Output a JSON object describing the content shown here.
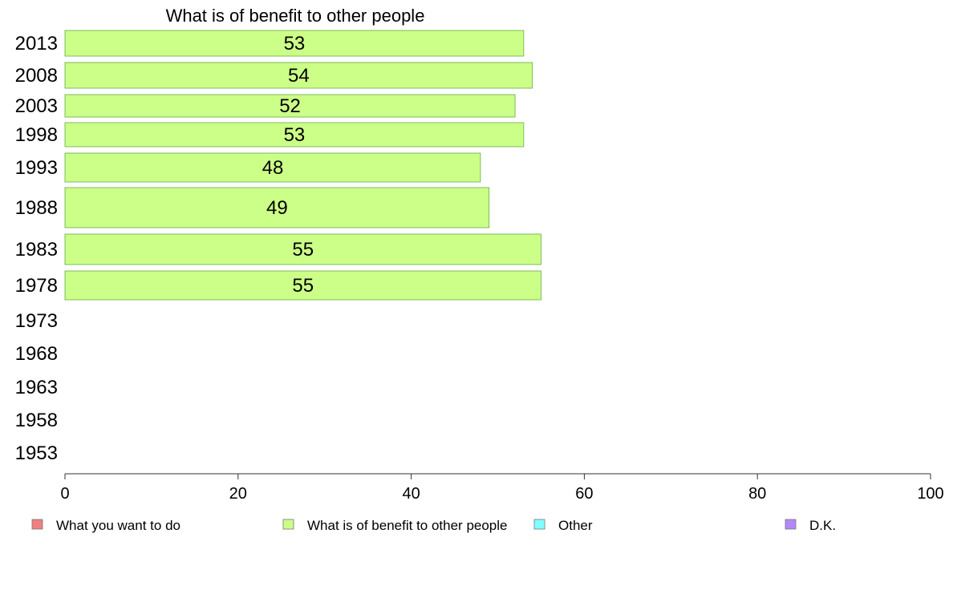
{
  "chart_data": {
    "type": "bar",
    "orientation": "horizontal",
    "title": "What is of benefit to other people",
    "categories": [
      "2013",
      "2008",
      "2003",
      "1998",
      "1993",
      "1988",
      "1983",
      "1978",
      "1973",
      "1968",
      "1963",
      "1958",
      "1953"
    ],
    "series": [
      {
        "name": "What is of benefit to other people",
        "color": "#ccff88",
        "values": [
          53,
          54,
          52,
          53,
          48,
          49,
          55,
          55,
          null,
          null,
          null,
          null,
          null
        ]
      }
    ],
    "xlim": [
      0,
      100
    ],
    "xticks": [
      0,
      20,
      40,
      60,
      80,
      100
    ],
    "legend_position": "bottom",
    "legend": [
      {
        "label": "What you want to do",
        "color": "#f08080"
      },
      {
        "label": "What is of benefit to other people",
        "color": "#ccff88"
      },
      {
        "label": "Other",
        "color": "#80ffff"
      },
      {
        "label": "D.K.",
        "color": "#b388ff"
      }
    ]
  }
}
